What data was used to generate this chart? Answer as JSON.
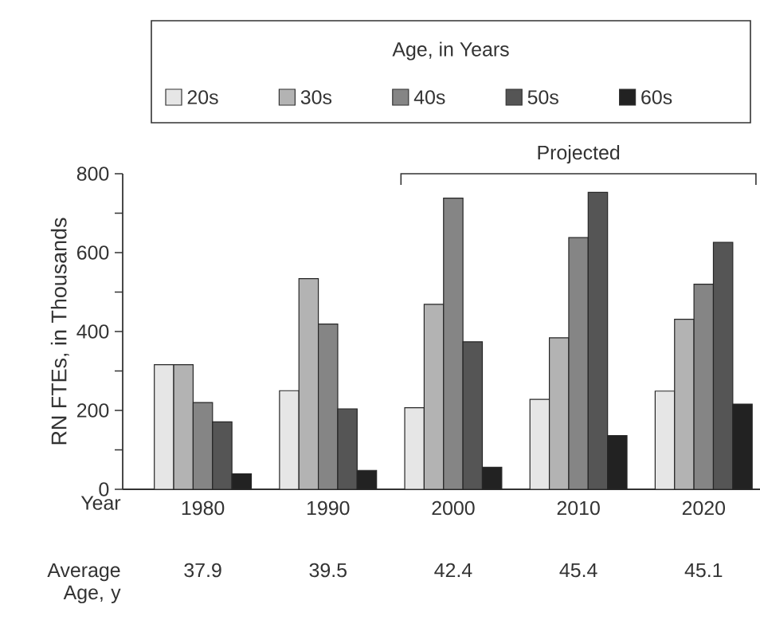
{
  "chart_data": {
    "type": "bar",
    "ylabel": "RN FTEs, in Thousands",
    "xlabel": "Year",
    "legend_title": "Age, in Years",
    "legend": "top",
    "categories": [
      "1980",
      "1990",
      "2000",
      "2010",
      "2020"
    ],
    "series": [
      {
        "name": "20s",
        "color": "#e6e6e6",
        "values": [
          316,
          250,
          207,
          228,
          249
        ]
      },
      {
        "name": "30s",
        "color": "#b3b3b3",
        "values": [
          316,
          534,
          469,
          384,
          431
        ]
      },
      {
        "name": "40s",
        "color": "#858585",
        "values": [
          220,
          419,
          738,
          638,
          520
        ]
      },
      {
        "name": "50s",
        "color": "#555555",
        "values": [
          171,
          204,
          374,
          753,
          626
        ]
      },
      {
        "name": "60s",
        "color": "#222222",
        "values": [
          39,
          48,
          56,
          136,
          216
        ]
      }
    ],
    "ylim": [
      0,
      800
    ],
    "yticks": [
      0,
      {
        "value": 100,
        "label": null
      },
      200,
      {
        "value": 300,
        "label": null
      },
      400,
      {
        "value": 500,
        "label": null
      },
      600,
      {
        "value": 700,
        "label": null
      },
      800
    ],
    "annotations": [
      "Average Age, y",
      "37.9",
      "39.5",
      "42.4",
      "45.4",
      "45.1",
      "Projected"
    ]
  }
}
